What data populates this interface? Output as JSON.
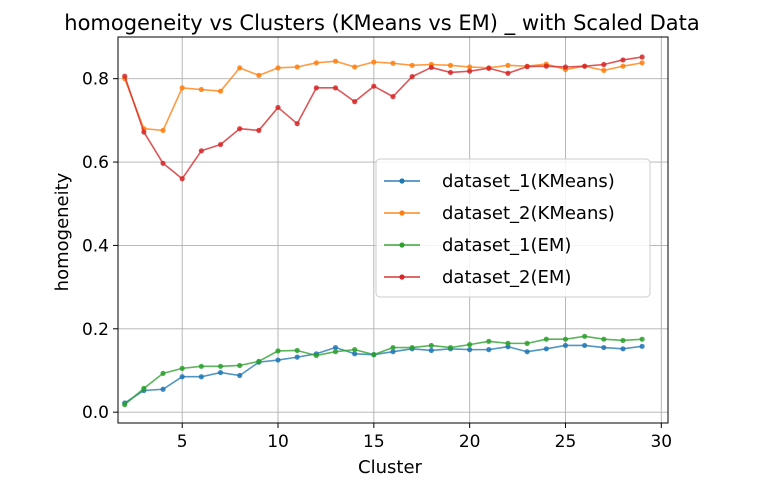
{
  "chart_data": {
    "type": "line",
    "title": "homogeneity vs Clusters (KMeans vs EM) _ with Scaled Data",
    "xlabel": "Cluster",
    "ylabel": "homogeneity",
    "xlim": [
      1.65,
      30.35
    ],
    "ylim": [
      -0.026,
      0.9
    ],
    "xticks": [
      5,
      10,
      15,
      20,
      25,
      30
    ],
    "yticks": [
      0.0,
      0.2,
      0.4,
      0.6,
      0.8
    ],
    "xtick_labels": [
      "5",
      "10",
      "15",
      "20",
      "25",
      "30"
    ],
    "ytick_labels": [
      "0.0",
      "0.2",
      "0.4",
      "0.6",
      "0.8"
    ],
    "grid": true,
    "legend_position": "center-right",
    "x": [
      2,
      3,
      4,
      5,
      6,
      7,
      8,
      9,
      10,
      11,
      12,
      13,
      14,
      15,
      16,
      17,
      18,
      19,
      20,
      21,
      22,
      23,
      24,
      25,
      26,
      27,
      28,
      29
    ],
    "series": [
      {
        "name": "dataset_1(KMeans)",
        "color": "#1f77b4",
        "values": [
          0.022,
          0.052,
          0.055,
          0.085,
          0.085,
          0.095,
          0.088,
          0.12,
          0.125,
          0.132,
          0.14,
          0.155,
          0.14,
          0.138,
          0.145,
          0.152,
          0.148,
          0.152,
          0.15,
          0.15,
          0.157,
          0.145,
          0.152,
          0.16,
          0.16,
          0.155,
          0.152,
          0.158
        ]
      },
      {
        "name": "dataset_2(KMeans)",
        "color": "#ff7f0e",
        "values": [
          0.8,
          0.68,
          0.676,
          0.778,
          0.774,
          0.77,
          0.826,
          0.808,
          0.826,
          0.828,
          0.838,
          0.842,
          0.828,
          0.84,
          0.837,
          0.832,
          0.834,
          0.832,
          0.828,
          0.826,
          0.832,
          0.83,
          0.835,
          0.822,
          0.83,
          0.82,
          0.83,
          0.838
        ]
      },
      {
        "name": "dataset_1(EM)",
        "color": "#2ca02c",
        "values": [
          0.018,
          0.057,
          0.093,
          0.105,
          0.11,
          0.11,
          0.112,
          0.122,
          0.147,
          0.148,
          0.136,
          0.145,
          0.15,
          0.138,
          0.155,
          0.155,
          0.16,
          0.155,
          0.162,
          0.17,
          0.165,
          0.165,
          0.175,
          0.175,
          0.182,
          0.175,
          0.172,
          0.175
        ]
      },
      {
        "name": "dataset_2(EM)",
        "color": "#d62728",
        "values": [
          0.806,
          0.672,
          0.597,
          0.56,
          0.627,
          0.642,
          0.68,
          0.676,
          0.731,
          0.692,
          0.778,
          0.778,
          0.745,
          0.782,
          0.757,
          0.805,
          0.827,
          0.815,
          0.818,
          0.825,
          0.813,
          0.829,
          0.83,
          0.828,
          0.83,
          0.834,
          0.845,
          0.852
        ]
      }
    ]
  }
}
